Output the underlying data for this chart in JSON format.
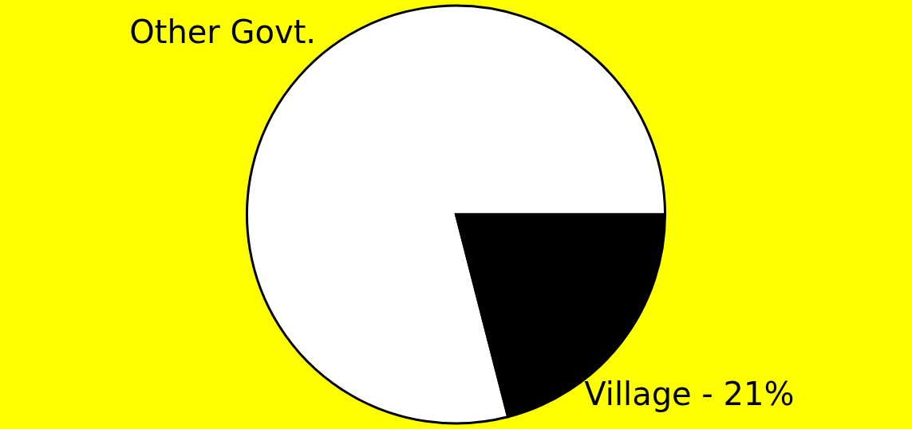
{
  "chart_data": {
    "type": "pie",
    "categories": [
      "Other Govt.",
      "Village - 21%"
    ],
    "values": [
      79,
      21
    ],
    "colors": [
      "#ffffff",
      "#000000"
    ],
    "legend": false
  }
}
